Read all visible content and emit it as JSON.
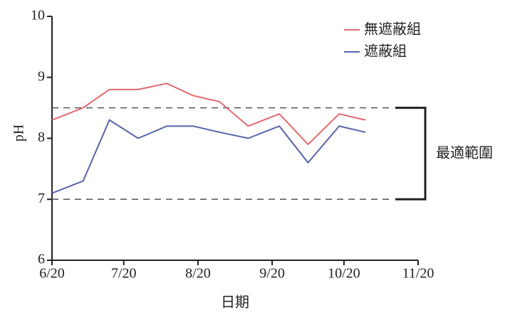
{
  "chart_data": {
    "type": "line",
    "x_label": "日期",
    "y_label": "pH",
    "x": [
      "6/20",
      "7/3",
      "7/14",
      "7/26",
      "8/7",
      "8/18",
      "8/29",
      "9/10",
      "9/23",
      "10/5",
      "10/18",
      "10/29"
    ],
    "series": [
      {
        "name": "無遮蔽組",
        "color": "#e06a6e",
        "values": [
          8.3,
          8.5,
          8.8,
          8.8,
          8.9,
          8.7,
          8.6,
          8.2,
          8.4,
          7.9,
          8.4,
          8.3
        ]
      },
      {
        "name": "遮蔽組",
        "color": "#5a64a8",
        "values": [
          7.1,
          7.3,
          8.3,
          8.0,
          8.2,
          8.2,
          8.1,
          8.0,
          8.2,
          7.6,
          8.2,
          8.1
        ]
      }
    ],
    "xlim": [
      "6/20",
      "11/20"
    ],
    "xticks": [
      "6/20",
      "7/20",
      "8/20",
      "9/20",
      "10/20",
      "11/20"
    ],
    "ylim": [
      6,
      10
    ],
    "yticks": [
      6,
      7,
      8,
      9,
      10
    ],
    "range": [
      7,
      8.5
    ],
    "range_label": "最適範圍",
    "legend": "upper right"
  }
}
